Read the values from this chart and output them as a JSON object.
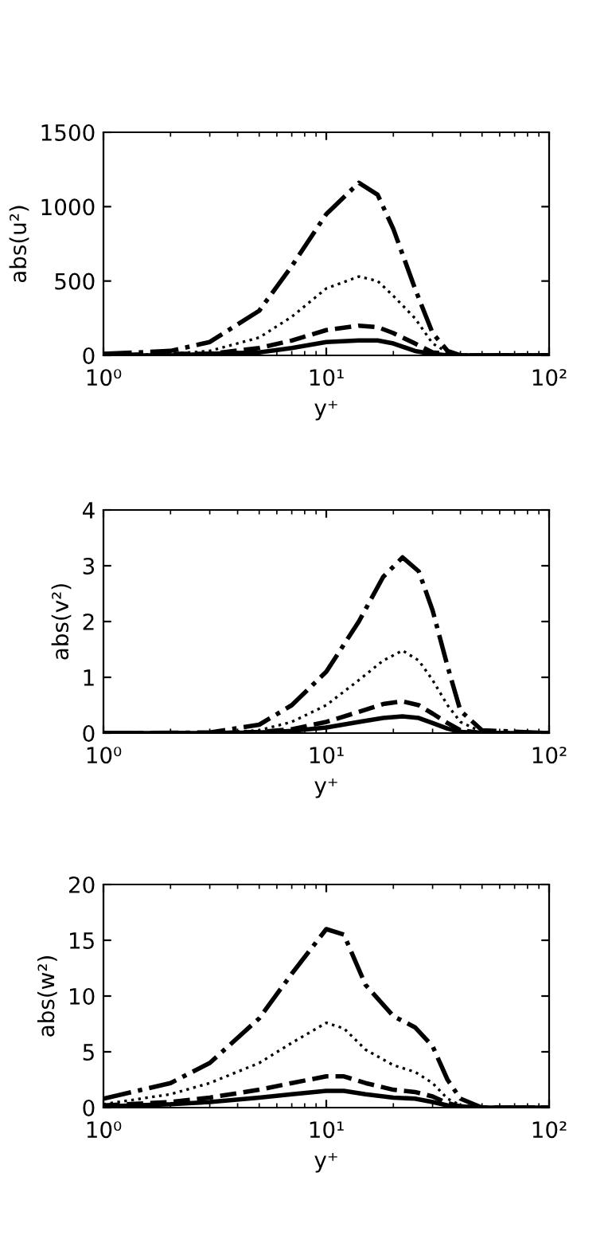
{
  "chart_data": [
    {
      "type": "line",
      "xlabel": "y⁺",
      "ylabel": "abs(u²)",
      "log": "x",
      "xlim": [
        1,
        100
      ],
      "ylim": [
        0,
        1500
      ],
      "xticks": [
        {
          "value": 1,
          "label": "10⁰"
        },
        {
          "value": 10,
          "label": "10¹"
        },
        {
          "value": 100,
          "label": "10²"
        }
      ],
      "yticks": [
        0,
        500,
        1000,
        1500
      ],
      "grid": false,
      "marker": "none",
      "series": [
        {
          "color": "#000000",
          "line_style": "solid",
          "x": [
            1,
            2,
            3,
            5,
            7,
            10,
            14,
            17,
            20,
            25,
            30,
            35,
            40,
            100
          ],
          "values": [
            0,
            0,
            10,
            20,
            50,
            90,
            100,
            100,
            80,
            30,
            10,
            0,
            0,
            0
          ]
        },
        {
          "color": "#000000",
          "line_style": "dashed",
          "x": [
            1,
            2,
            3,
            5,
            7,
            10,
            14,
            17,
            20,
            25,
            30,
            35,
            40,
            100
          ],
          "values": [
            0,
            10,
            10,
            50,
            100,
            170,
            200,
            190,
            150,
            80,
            20,
            10,
            0,
            0
          ]
        },
        {
          "color": "#000000",
          "line_style": "dotted",
          "x": [
            1,
            2,
            3,
            5,
            7,
            10,
            14,
            17,
            20,
            25,
            30,
            35,
            40,
            100
          ],
          "values": [
            0,
            10,
            30,
            120,
            260,
            450,
            530,
            500,
            400,
            250,
            80,
            20,
            0,
            0
          ]
        },
        {
          "color": "#000000",
          "line_style": "dashdot",
          "x": [
            1,
            2,
            3,
            5,
            7,
            10,
            14,
            17,
            20,
            25,
            30,
            35,
            40,
            100
          ],
          "values": [
            10,
            30,
            90,
            300,
            600,
            950,
            1160,
            1080,
            850,
            450,
            150,
            30,
            0,
            0
          ]
        }
      ]
    },
    {
      "type": "line",
      "xlabel": "y⁺",
      "ylabel": "abs(v²)",
      "log": "x",
      "xlim": [
        1,
        100
      ],
      "ylim": [
        0,
        4
      ],
      "xticks": [
        {
          "value": 1,
          "label": "10⁰"
        },
        {
          "value": 10,
          "label": "10¹"
        },
        {
          "value": 100,
          "label": "10²"
        }
      ],
      "yticks": [
        0,
        1,
        2,
        3,
        4
      ],
      "grid": false,
      "marker": "none",
      "series": [
        {
          "color": "#000000",
          "line_style": "solid",
          "x": [
            1,
            3,
            5,
            7,
            10,
            14,
            18,
            22,
            26,
            30,
            35,
            40,
            50,
            100
          ],
          "values": [
            0,
            0,
            0.01,
            0.04,
            0.1,
            0.2,
            0.27,
            0.3,
            0.27,
            0.18,
            0.08,
            0.02,
            0,
            0
          ]
        },
        {
          "color": "#000000",
          "line_style": "dashed",
          "x": [
            1,
            3,
            5,
            7,
            10,
            14,
            18,
            22,
            26,
            30,
            35,
            40,
            50,
            100
          ],
          "values": [
            0,
            0,
            0.02,
            0.07,
            0.2,
            0.38,
            0.52,
            0.57,
            0.5,
            0.35,
            0.18,
            0.05,
            0,
            0
          ]
        },
        {
          "color": "#000000",
          "line_style": "dotted",
          "x": [
            1,
            3,
            5,
            7,
            10,
            14,
            18,
            22,
            26,
            30,
            35,
            40,
            50,
            100
          ],
          "values": [
            0,
            0,
            0.05,
            0.2,
            0.5,
            0.95,
            1.3,
            1.48,
            1.3,
            0.95,
            0.5,
            0.2,
            0.02,
            0
          ]
        },
        {
          "color": "#000000",
          "line_style": "dashdot",
          "x": [
            1,
            3,
            5,
            7,
            10,
            14,
            18,
            22,
            26,
            30,
            35,
            40,
            50,
            100
          ],
          "values": [
            0,
            0.01,
            0.15,
            0.5,
            1.1,
            2.0,
            2.8,
            3.15,
            2.9,
            2.2,
            1.2,
            0.4,
            0.05,
            0
          ]
        }
      ]
    },
    {
      "type": "line",
      "xlabel": "y⁺",
      "ylabel": "abs(w²)",
      "log": "x",
      "xlim": [
        1,
        100
      ],
      "ylim": [
        0,
        20
      ],
      "xticks": [
        {
          "value": 1,
          "label": "10⁰"
        },
        {
          "value": 10,
          "label": "10¹"
        },
        {
          "value": 100,
          "label": "10²"
        }
      ],
      "yticks": [
        0,
        5,
        10,
        15,
        20
      ],
      "grid": false,
      "marker": "none",
      "series": [
        {
          "color": "#000000",
          "line_style": "solid",
          "x": [
            1,
            2,
            3,
            5,
            7,
            10,
            12,
            15,
            20,
            25,
            30,
            35,
            40,
            50,
            100
          ],
          "values": [
            0.1,
            0.3,
            0.5,
            0.9,
            1.2,
            1.5,
            1.5,
            1.2,
            0.9,
            0.8,
            0.5,
            0.2,
            0.1,
            0,
            0
          ]
        },
        {
          "color": "#000000",
          "line_style": "dashed",
          "x": [
            1,
            2,
            3,
            5,
            7,
            10,
            12,
            15,
            20,
            25,
            30,
            35,
            40,
            50,
            100
          ],
          "values": [
            0.2,
            0.5,
            0.9,
            1.6,
            2.2,
            2.8,
            2.8,
            2.2,
            1.6,
            1.4,
            1.0,
            0.4,
            0.1,
            0,
            0
          ]
        },
        {
          "color": "#000000",
          "line_style": "dotted",
          "x": [
            1,
            2,
            3,
            5,
            7,
            10,
            12,
            15,
            20,
            25,
            30,
            35,
            40,
            50,
            100
          ],
          "values": [
            0.3,
            1.2,
            2.2,
            4,
            5.8,
            7.6,
            7.1,
            5.2,
            3.8,
            3.2,
            2.2,
            0.8,
            0.2,
            0,
            0
          ]
        },
        {
          "color": "#000000",
          "line_style": "dashdot",
          "x": [
            1,
            2,
            3,
            5,
            7,
            10,
            12,
            15,
            20,
            25,
            30,
            35,
            40,
            50,
            100
          ],
          "values": [
            0.8,
            2.2,
            4,
            8,
            12,
            16,
            15.5,
            11,
            8.2,
            7.2,
            5.5,
            2.5,
            0.8,
            0,
            0
          ]
        }
      ]
    }
  ]
}
